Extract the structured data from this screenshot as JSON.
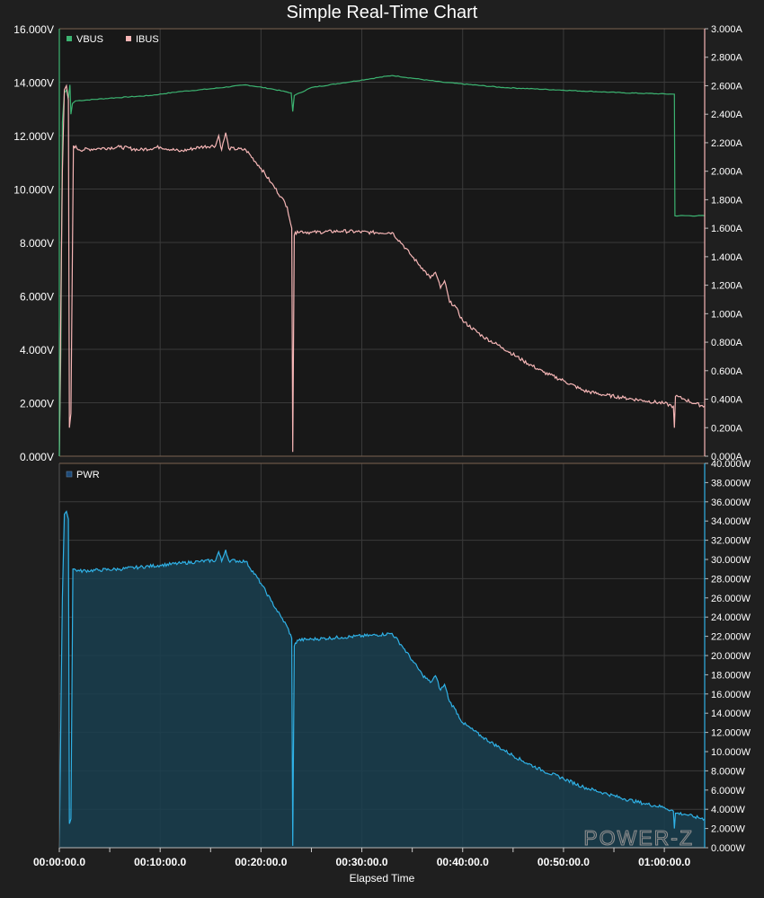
{
  "title": "Simple Real-Time Chart",
  "logo_text": "POWER-Z",
  "colors": {
    "vbus": "#3cb371",
    "ibus": "#f6b6b6",
    "pwr": "#2fb1e6",
    "pwr_fill": "#1a3f50",
    "grid": "#3a3a3a",
    "plot_bg": "#181818",
    "border": "#7b6350"
  },
  "chart_data": [
    {
      "type": "line",
      "panel": "top",
      "series": [
        {
          "name": "VBUS",
          "axis": "left",
          "unit": "V",
          "points": [
            [
              0,
              0
            ],
            [
              0.15,
              4
            ],
            [
              0.3,
              12.5
            ],
            [
              0.5,
              13.6
            ],
            [
              0.7,
              13.7
            ],
            [
              0.9,
              13.4
            ],
            [
              1.05,
              13.9
            ],
            [
              1.15,
              12.8
            ],
            [
              1.3,
              13.2
            ],
            [
              1.6,
              13.3
            ],
            [
              5,
              13.4
            ],
            [
              9,
              13.5
            ],
            [
              12,
              13.65
            ],
            [
              15,
              13.75
            ],
            [
              18.5,
              13.9
            ],
            [
              21,
              13.75
            ],
            [
              23,
              13.6
            ],
            [
              23.15,
              12.9
            ],
            [
              23.3,
              13.5
            ],
            [
              25,
              13.8
            ],
            [
              33,
              14.25
            ],
            [
              38,
              14.0
            ],
            [
              44,
              13.8
            ],
            [
              50,
              13.7
            ],
            [
              56,
              13.6
            ],
            [
              61,
              13.55
            ],
            [
              61.05,
              9.0
            ],
            [
              64,
              9.0
            ]
          ]
        },
        {
          "name": "IBUS",
          "axis": "right",
          "unit": "A",
          "points": [
            [
              0,
              0
            ],
            [
              0.3,
              2.0
            ],
            [
              0.5,
              2.57
            ],
            [
              0.7,
              2.6
            ],
            [
              0.9,
              2.5
            ],
            [
              1.0,
              0.2
            ],
            [
              1.15,
              0.3
            ],
            [
              1.4,
              2.18
            ],
            [
              2,
              2.15
            ],
            [
              4,
              2.16
            ],
            [
              6,
              2.17
            ],
            [
              8,
              2.15
            ],
            [
              10,
              2.17
            ],
            [
              12,
              2.14
            ],
            [
              14,
              2.17
            ],
            [
              15.5,
              2.18
            ],
            [
              15.8,
              2.25
            ],
            [
              16.1,
              2.15
            ],
            [
              16.5,
              2.27
            ],
            [
              16.8,
              2.16
            ],
            [
              18.5,
              2.15
            ],
            [
              20,
              2.02
            ],
            [
              21,
              1.92
            ],
            [
              22,
              1.82
            ],
            [
              22.6,
              1.75
            ],
            [
              23.05,
              1.6
            ],
            [
              23.15,
              0.03
            ],
            [
              23.3,
              1.55
            ],
            [
              23.6,
              1.58
            ],
            [
              25,
              1.57
            ],
            [
              28,
              1.58
            ],
            [
              31,
              1.57
            ],
            [
              33,
              1.57
            ],
            [
              34,
              1.49
            ],
            [
              35,
              1.4
            ],
            [
              36,
              1.32
            ],
            [
              36.8,
              1.25
            ],
            [
              37.3,
              1.29
            ],
            [
              37.8,
              1.18
            ],
            [
              38.2,
              1.23
            ],
            [
              38.7,
              1.08
            ],
            [
              39.2,
              1.06
            ],
            [
              40,
              0.95
            ],
            [
              42,
              0.84
            ],
            [
              44,
              0.76
            ],
            [
              46,
              0.67
            ],
            [
              48,
              0.59
            ],
            [
              50,
              0.53
            ],
            [
              52,
              0.46
            ],
            [
              54,
              0.43
            ],
            [
              56,
              0.41
            ],
            [
              58,
              0.39
            ],
            [
              60,
              0.37
            ],
            [
              60.9,
              0.35
            ],
            [
              61,
              0.2
            ],
            [
              61.1,
              0.42
            ],
            [
              62,
              0.4
            ],
            [
              63,
              0.37
            ],
            [
              64,
              0.35
            ]
          ]
        }
      ],
      "left_axis": {
        "range": [
          0,
          16
        ],
        "ticks": [
          "0.000V",
          "2.000V",
          "4.000V",
          "6.000V",
          "8.000V",
          "10.000V",
          "12.000V",
          "14.000V",
          "16.000V"
        ]
      },
      "right_axis": {
        "range": [
          0,
          3
        ],
        "ticks": [
          "0.000A",
          "0.200A",
          "0.400A",
          "0.600A",
          "0.800A",
          "1.000A",
          "1.200A",
          "1.400A",
          "1.600A",
          "1.800A",
          "2.000A",
          "2.200A",
          "2.400A",
          "2.600A",
          "2.800A",
          "3.000A"
        ]
      },
      "legend": "top-left",
      "grid": true
    },
    {
      "type": "area",
      "panel": "bottom",
      "series": [
        {
          "name": "PWR",
          "axis": "right",
          "unit": "W",
          "points": [
            [
              0,
              0
            ],
            [
              0.3,
              26
            ],
            [
              0.5,
              34.7
            ],
            [
              0.7,
              35.0
            ],
            [
              0.9,
              34.2
            ],
            [
              1.0,
              2.5
            ],
            [
              1.15,
              3
            ],
            [
              1.35,
              29
            ],
            [
              2,
              28.8
            ],
            [
              4,
              28.9
            ],
            [
              6,
              29.0
            ],
            [
              8,
              29.2
            ],
            [
              10,
              29.4
            ],
            [
              12,
              29.6
            ],
            [
              14,
              29.8
            ],
            [
              15.5,
              29.9
            ],
            [
              15.8,
              30.8
            ],
            [
              16.1,
              29.8
            ],
            [
              16.5,
              31.0
            ],
            [
              16.8,
              29.9
            ],
            [
              18.5,
              29.8
            ],
            [
              20,
              27.5
            ],
            [
              21,
              25.7
            ],
            [
              22,
              24.0
            ],
            [
              22.6,
              23.0
            ],
            [
              23.05,
              21.8
            ],
            [
              23.15,
              0.2
            ],
            [
              23.3,
              21.0
            ],
            [
              23.6,
              21.6
            ],
            [
              25,
              21.7
            ],
            [
              28,
              21.9
            ],
            [
              31,
              22.1
            ],
            [
              33,
              22.3
            ],
            [
              34,
              21.0
            ],
            [
              35,
              19.5
            ],
            [
              36,
              18.0
            ],
            [
              36.8,
              17.2
            ],
            [
              37.3,
              17.9
            ],
            [
              37.8,
              16.4
            ],
            [
              38.2,
              17.0
            ],
            [
              38.7,
              15.2
            ],
            [
              39.2,
              14.5
            ],
            [
              40,
              13.0
            ],
            [
              42,
              11.5
            ],
            [
              44,
              10.2
            ],
            [
              46,
              9.0
            ],
            [
              48,
              8.0
            ],
            [
              50,
              7.2
            ],
            [
              52,
              6.3
            ],
            [
              54,
              5.7
            ],
            [
              56,
              5.1
            ],
            [
              58,
              4.6
            ],
            [
              60,
              4.2
            ],
            [
              60.9,
              3.8
            ],
            [
              61,
              2.0
            ],
            [
              61.1,
              3.6
            ],
            [
              62,
              3.5
            ],
            [
              63,
              3.2
            ],
            [
              64,
              3.0
            ]
          ]
        }
      ],
      "right_axis": {
        "range": [
          0,
          40
        ],
        "ticks": [
          "0.000W",
          "2.000W",
          "4.000W",
          "6.000W",
          "8.000W",
          "10.000W",
          "12.000W",
          "14.000W",
          "16.000W",
          "18.000W",
          "20.000W",
          "22.000W",
          "24.000W",
          "26.000W",
          "28.000W",
          "30.000W",
          "32.000W",
          "34.000W",
          "36.000W",
          "38.000W",
          "40.000W"
        ]
      },
      "legend": "top-left",
      "grid": true
    }
  ],
  "x_axis": {
    "label": "Elapsed Time",
    "range_minutes": [
      0,
      64
    ],
    "ticks": [
      {
        "minutes": 0,
        "label": "00:00:00.0"
      },
      {
        "minutes": 10,
        "label": "00:10:00.0"
      },
      {
        "minutes": 20,
        "label": "00:20:00.0"
      },
      {
        "minutes": 30,
        "label": "00:30:00.0"
      },
      {
        "minutes": 40,
        "label": "00:40:00.0"
      },
      {
        "minutes": 50,
        "label": "00:50:00.0"
      },
      {
        "minutes": 60,
        "label": "01:00:00.0"
      }
    ]
  }
}
